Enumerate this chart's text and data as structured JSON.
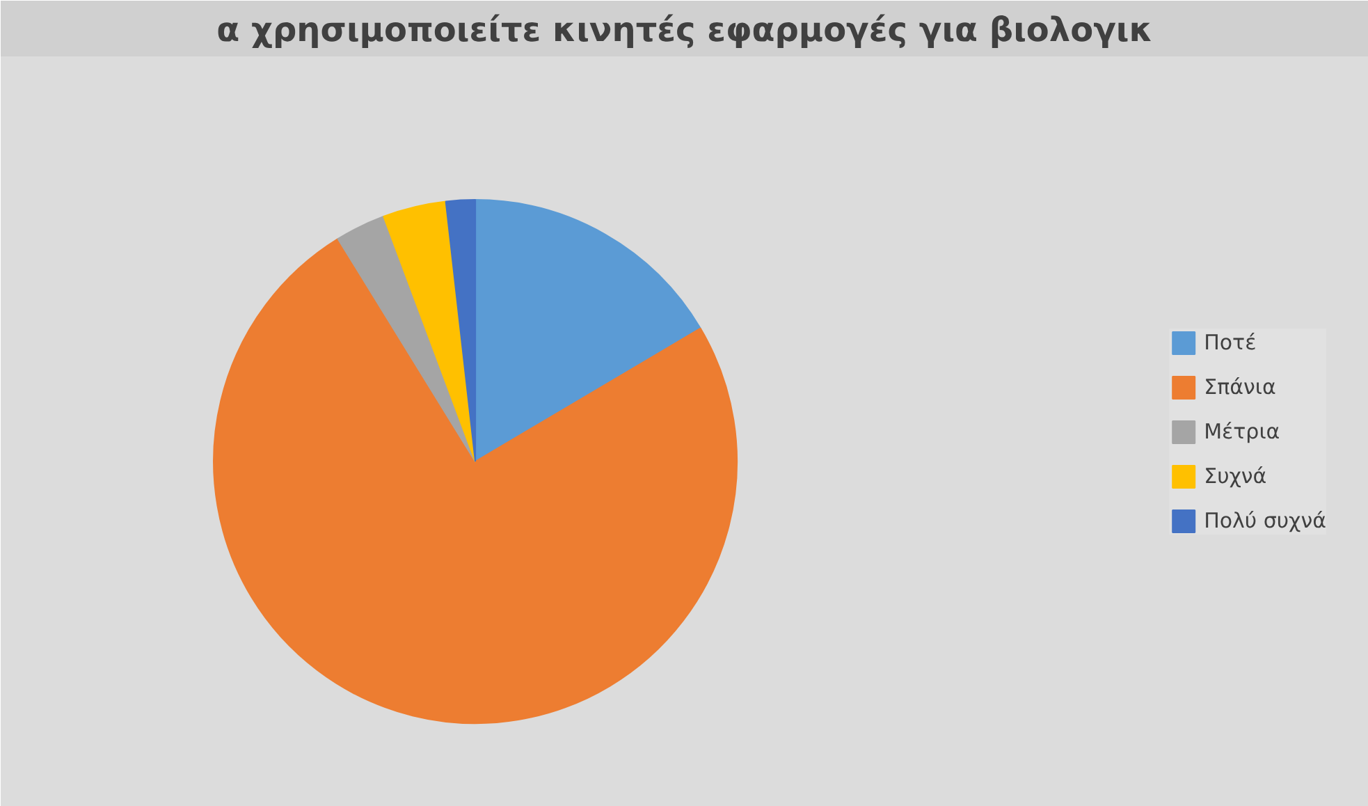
{
  "chart_data": {
    "type": "pie",
    "title": "α χρησιμοποιείτε κινητές εφαρμογές για βιολογικ",
    "categories": [
      "Ποτέ",
      "Σπάνια",
      "Μέτρια",
      "Συχνά",
      "Πολύ συχνά"
    ],
    "values": [
      16.5,
      74.7,
      3.1,
      3.9,
      1.8
    ],
    "colors": [
      "#5b9bd5",
      "#ed7d31",
      "#a5a5a5",
      "#ffc000",
      "#4472c4"
    ],
    "legend": "right"
  }
}
